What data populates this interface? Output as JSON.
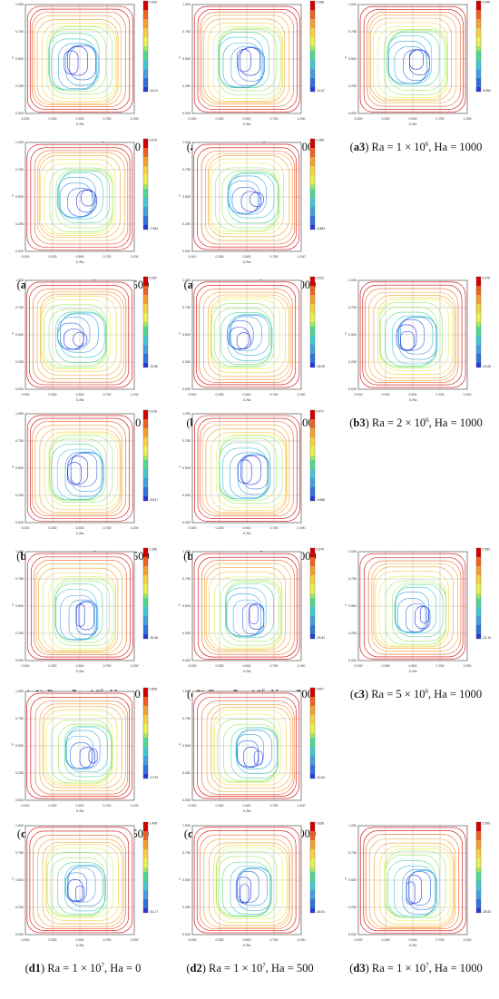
{
  "figure": {
    "panels": [
      {
        "id": "a1",
        "ra_base": "1",
        "ra_exp": "6",
        "ha": "0",
        "legend_max": "0.000",
        "legend_min": "-16.01"
      },
      {
        "id": "a2",
        "ra_base": "1",
        "ra_exp": "6",
        "ha": "500",
        "legend_max": "0.058",
        "legend_min": "-11.67"
      },
      {
        "id": "a3",
        "ra_base": "1",
        "ra_exp": "6",
        "ha": "1000",
        "legend_max": "0.045",
        "legend_min": "-8.952"
      },
      {
        "id": "a4",
        "ra_base": "1",
        "ra_exp": "6",
        "ha": "1500",
        "legend_max": "0.010",
        "legend_min": "-7.984"
      },
      {
        "id": "a5",
        "ra_base": "1",
        "ra_exp": "6",
        "ha": "2000",
        "legend_max": "0.186",
        "legend_min": "-6.884"
      },
      {
        "id": "b1",
        "ra_base": "2",
        "ra_exp": "6",
        "ha": "0",
        "legend_max": "0.067",
        "legend_min": "-22.86"
      },
      {
        "id": "b2",
        "ra_base": "2",
        "ra_exp": "6",
        "ha": "500",
        "legend_max": "0.022",
        "legend_min": "-16.05"
      },
      {
        "id": "b3",
        "ra_base": "2",
        "ra_exp": "6",
        "ha": "1000",
        "legend_max": "0.079",
        "legend_min": "-12.65"
      },
      {
        "id": "b4",
        "ra_base": "2",
        "ra_exp": "6",
        "ha": "1500",
        "legend_max": "0.016",
        "legend_min": "-9.817"
      },
      {
        "id": "b5",
        "ra_base": "2",
        "ra_exp": "6",
        "ha": "2000",
        "legend_max": "0.077",
        "legend_min": "-9.666"
      },
      {
        "id": "c1",
        "ra_base": "5",
        "ra_exp": "6",
        "ha": "0",
        "legend_max": "1.196",
        "legend_min": "-30.38"
      },
      {
        "id": "c2",
        "ra_base": "5",
        "ra_exp": "6",
        "ha": "500",
        "legend_max": "0.670",
        "legend_min": "-25.81"
      },
      {
        "id": "c3",
        "ra_base": "5",
        "ra_exp": "6",
        "ha": "1000",
        "legend_max": "0.353",
        "legend_min": "-22.15"
      },
      {
        "id": "c4",
        "ra_base": "5",
        "ra_exp": "6",
        "ha": "1500",
        "legend_max": "0.865",
        "legend_min": "-17.94"
      },
      {
        "id": "c5",
        "ra_base": "5",
        "ra_exp": "6",
        "ha": "2000",
        "legend_max": "0.697",
        "legend_min": "-12.60"
      },
      {
        "id": "d1",
        "ra_base": "1",
        "ra_exp": "7",
        "ha": "0",
        "legend_max": "1.409",
        "legend_min": "-51.17"
      },
      {
        "id": "d2",
        "ra_base": "1",
        "ra_exp": "7",
        "ha": "500",
        "legend_max": "0.636",
        "legend_min": "-36.51"
      },
      {
        "id": "d3",
        "ra_base": "1",
        "ra_exp": "7",
        "ha": "1000",
        "legend_max": "0.290",
        "legend_min": "-28.83"
      }
    ],
    "axis_ticks": [
      "0.000",
      "0.250",
      "0.500",
      "0.750",
      "1.000"
    ],
    "x_axis_label": "X-Ra",
    "y_axis_label": "Y",
    "colors": {
      "contour_ramp": [
        "#d40000",
        "#f06020",
        "#f4a030",
        "#f6d040",
        "#e8f050",
        "#9ee860",
        "#50d890",
        "#40c8d0",
        "#40a0e0",
        "#3070e0",
        "#2838d8"
      ],
      "grid": "#9a9a9a"
    }
  }
}
